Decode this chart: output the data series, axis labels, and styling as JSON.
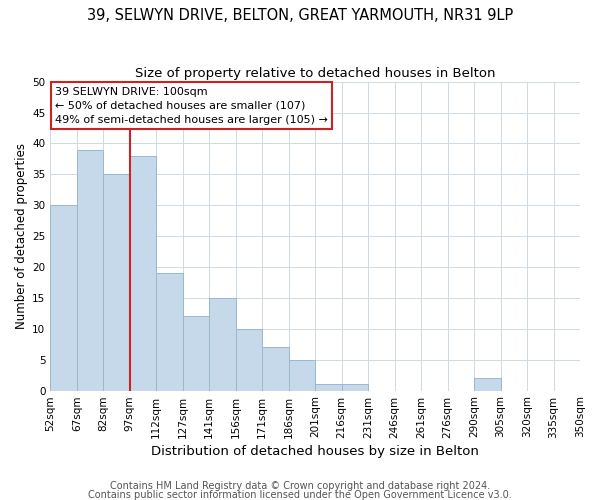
{
  "title": "39, SELWYN DRIVE, BELTON, GREAT YARMOUTH, NR31 9LP",
  "subtitle": "Size of property relative to detached houses in Belton",
  "bar_values": [
    30,
    39,
    35,
    38,
    19,
    12,
    15,
    10,
    7,
    5,
    1,
    1,
    0,
    0,
    0,
    0,
    2
  ],
  "bar_labels": [
    "52sqm",
    "67sqm",
    "82sqm",
    "97sqm",
    "112sqm",
    "127sqm",
    "141sqm",
    "156sqm",
    "171sqm",
    "186sqm",
    "201sqm",
    "216sqm",
    "231sqm",
    "246sqm",
    "261sqm",
    "276sqm",
    "290sqm",
    "305sqm",
    "320sqm",
    "335sqm",
    "350sqm"
  ],
  "bar_color": "#c6d9ea",
  "bar_edge_color": "#99b8cf",
  "ylabel": "Number of detached properties",
  "xlabel": "Distribution of detached houses by size in Belton",
  "ylim": [
    0,
    50
  ],
  "yticks": [
    0,
    5,
    10,
    15,
    20,
    25,
    30,
    35,
    40,
    45,
    50
  ],
  "vline_color": "#cc2222",
  "annotation_text": "39 SELWYN DRIVE: 100sqm\n← 50% of detached houses are smaller (107)\n49% of semi-detached houses are larger (105) →",
  "footer1": "Contains HM Land Registry data © Crown copyright and database right 2024.",
  "footer2": "Contains public sector information licensed under the Open Government Licence v3.0.",
  "background_color": "#ffffff",
  "grid_color": "#cdd9e5",
  "title_fontsize": 10.5,
  "subtitle_fontsize": 9.5,
  "xlabel_fontsize": 9.5,
  "ylabel_fontsize": 8.5,
  "tick_fontsize": 7.5,
  "annotation_fontsize": 8,
  "footer_fontsize": 7
}
